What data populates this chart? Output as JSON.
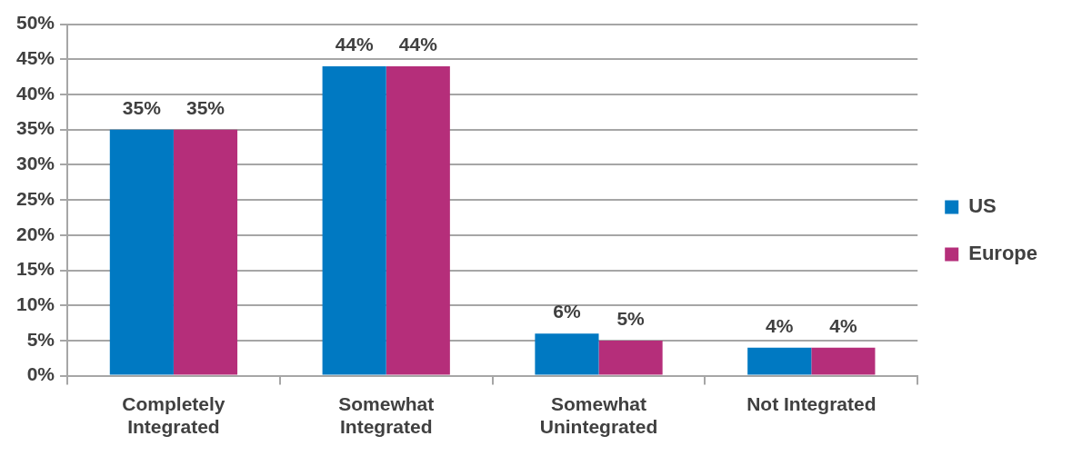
{
  "chart_data": {
    "type": "bar",
    "categories": [
      "Completely Integrated",
      "Somewhat Integrated",
      "Somewhat Unintegrated",
      "Not Integrated"
    ],
    "series": [
      {
        "name": "US",
        "color": "#0079c2",
        "values": [
          35,
          44,
          6,
          4
        ],
        "value_labels": [
          "35%",
          "44%",
          "6%",
          "4%"
        ]
      },
      {
        "name": "Europe",
        "color": "#b52e7a",
        "values": [
          35,
          44,
          5,
          4
        ],
        "value_labels": [
          "35%",
          "44%",
          "5%",
          "4%"
        ]
      }
    ],
    "ylim": [
      0,
      50
    ],
    "yticks": [
      {
        "value": 0,
        "label": "0%"
      },
      {
        "value": 5,
        "label": "5%"
      },
      {
        "value": 10,
        "label": "10%"
      },
      {
        "value": 15,
        "label": "15%"
      },
      {
        "value": 20,
        "label": "20%"
      },
      {
        "value": 25,
        "label": "25%"
      },
      {
        "value": 30,
        "label": "30%"
      },
      {
        "value": 35,
        "label": "35%"
      },
      {
        "value": 40,
        "label": "40%"
      },
      {
        "value": 45,
        "label": "45%"
      },
      {
        "value": 50,
        "label": "50%"
      }
    ],
    "grid": "y",
    "legend": "right"
  }
}
